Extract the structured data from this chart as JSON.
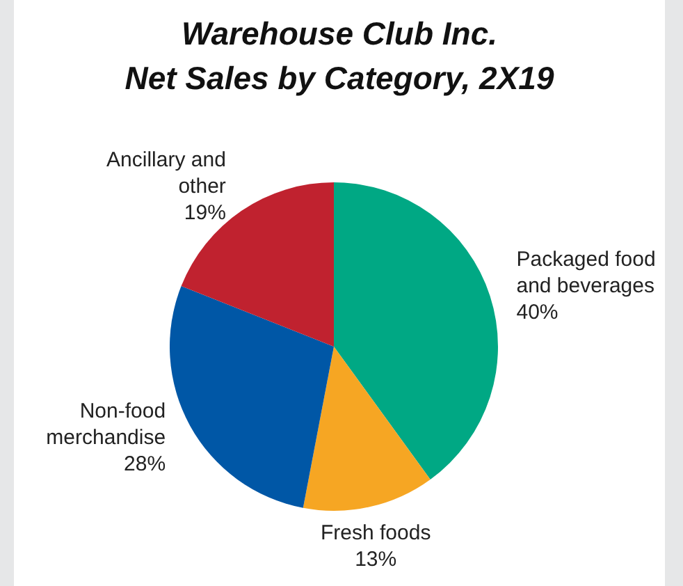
{
  "chart_data": {
    "type": "pie",
    "title": "Warehouse Club Inc.\nNet Sales by Category, 2X19",
    "categories": [
      "Packaged food and beverages",
      "Fresh foods",
      "Non-food merchandise",
      "Ancillary and other"
    ],
    "values": [
      40,
      13,
      28,
      19
    ],
    "colors": [
      "#00a884",
      "#f6a623",
      "#0057a6",
      "#c0222f"
    ],
    "value_labels": [
      "40%",
      "13%",
      "28%",
      "19%"
    ]
  }
}
